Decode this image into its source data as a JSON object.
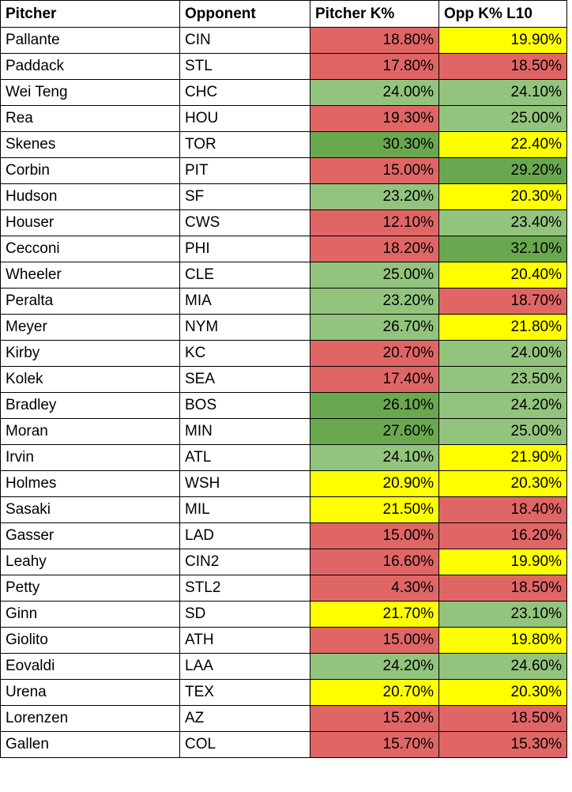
{
  "colors": {
    "red": "#e06666",
    "yellow": "#ffff00",
    "light_green": "#93c47d",
    "dark_green": "#6aa84f"
  },
  "header": {
    "pitcher": "Pitcher",
    "opponent": "Opponent",
    "pitcher_k": "Pitcher K%",
    "opp_k_l10": "Opp K% L10"
  },
  "rows": [
    {
      "pitcher": "Pallante",
      "opponent": "CIN",
      "pitcher_k": "18.80%",
      "pitcher_k_color": "red",
      "opp_k": "19.90%",
      "opp_k_color": "yellow"
    },
    {
      "pitcher": "Paddack",
      "opponent": "STL",
      "pitcher_k": "17.80%",
      "pitcher_k_color": "red",
      "opp_k": "18.50%",
      "opp_k_color": "red"
    },
    {
      "pitcher": "Wei Teng",
      "opponent": "CHC",
      "pitcher_k": "24.00%",
      "pitcher_k_color": "light_green",
      "opp_k": "24.10%",
      "opp_k_color": "light_green"
    },
    {
      "pitcher": "Rea",
      "opponent": "HOU",
      "pitcher_k": "19.30%",
      "pitcher_k_color": "red",
      "opp_k": "25.00%",
      "opp_k_color": "light_green"
    },
    {
      "pitcher": "Skenes",
      "opponent": "TOR",
      "pitcher_k": "30.30%",
      "pitcher_k_color": "dark_green",
      "opp_k": "22.40%",
      "opp_k_color": "yellow"
    },
    {
      "pitcher": "Corbin",
      "opponent": "PIT",
      "pitcher_k": "15.00%",
      "pitcher_k_color": "red",
      "opp_k": "29.20%",
      "opp_k_color": "dark_green"
    },
    {
      "pitcher": "Hudson",
      "opponent": "SF",
      "pitcher_k": "23.20%",
      "pitcher_k_color": "light_green",
      "opp_k": "20.30%",
      "opp_k_color": "yellow"
    },
    {
      "pitcher": "Houser",
      "opponent": "CWS",
      "pitcher_k": "12.10%",
      "pitcher_k_color": "red",
      "opp_k": "23.40%",
      "opp_k_color": "light_green"
    },
    {
      "pitcher": "Cecconi",
      "opponent": "PHI",
      "pitcher_k": "18.20%",
      "pitcher_k_color": "red",
      "opp_k": "32.10%",
      "opp_k_color": "dark_green"
    },
    {
      "pitcher": "Wheeler",
      "opponent": "CLE",
      "pitcher_k": "25.00%",
      "pitcher_k_color": "light_green",
      "opp_k": "20.40%",
      "opp_k_color": "yellow"
    },
    {
      "pitcher": "Peralta",
      "opponent": "MIA",
      "pitcher_k": "23.20%",
      "pitcher_k_color": "light_green",
      "opp_k": "18.70%",
      "opp_k_color": "red"
    },
    {
      "pitcher": "Meyer",
      "opponent": "NYM",
      "pitcher_k": "26.70%",
      "pitcher_k_color": "light_green",
      "opp_k": "21.80%",
      "opp_k_color": "yellow"
    },
    {
      "pitcher": "Kirby",
      "opponent": "KC",
      "pitcher_k": "20.70%",
      "pitcher_k_color": "red",
      "opp_k": "24.00%",
      "opp_k_color": "light_green"
    },
    {
      "pitcher": "Kolek",
      "opponent": "SEA",
      "pitcher_k": "17.40%",
      "pitcher_k_color": "red",
      "opp_k": "23.50%",
      "opp_k_color": "light_green"
    },
    {
      "pitcher": "Bradley",
      "opponent": "BOS",
      "pitcher_k": "26.10%",
      "pitcher_k_color": "dark_green",
      "opp_k": "24.20%",
      "opp_k_color": "light_green"
    },
    {
      "pitcher": "Moran",
      "opponent": "MIN",
      "pitcher_k": "27.60%",
      "pitcher_k_color": "dark_green",
      "opp_k": "25.00%",
      "opp_k_color": "light_green"
    },
    {
      "pitcher": "Irvin",
      "opponent": "ATL",
      "pitcher_k": "24.10%",
      "pitcher_k_color": "light_green",
      "opp_k": "21.90%",
      "opp_k_color": "yellow"
    },
    {
      "pitcher": "Holmes",
      "opponent": "WSH",
      "pitcher_k": "20.90%",
      "pitcher_k_color": "yellow",
      "opp_k": "20.30%",
      "opp_k_color": "yellow"
    },
    {
      "pitcher": "Sasaki",
      "opponent": "MIL",
      "pitcher_k": "21.50%",
      "pitcher_k_color": "yellow",
      "opp_k": "18.40%",
      "opp_k_color": "red"
    },
    {
      "pitcher": "Gasser",
      "opponent": "LAD",
      "pitcher_k": "15.00%",
      "pitcher_k_color": "red",
      "opp_k": "16.20%",
      "opp_k_color": "red"
    },
    {
      "pitcher": "Leahy",
      "opponent": "CIN2",
      "pitcher_k": "16.60%",
      "pitcher_k_color": "red",
      "opp_k": "19.90%",
      "opp_k_color": "yellow"
    },
    {
      "pitcher": "Petty",
      "opponent": "STL2",
      "pitcher_k": "4.30%",
      "pitcher_k_color": "red",
      "opp_k": "18.50%",
      "opp_k_color": "red"
    },
    {
      "pitcher": "Ginn",
      "opponent": "SD",
      "pitcher_k": "21.70%",
      "pitcher_k_color": "yellow",
      "opp_k": "23.10%",
      "opp_k_color": "light_green"
    },
    {
      "pitcher": "Giolito",
      "opponent": "ATH",
      "pitcher_k": "15.00%",
      "pitcher_k_color": "red",
      "opp_k": "19.80%",
      "opp_k_color": "yellow"
    },
    {
      "pitcher": "Eovaldi",
      "opponent": "LAA",
      "pitcher_k": "24.20%",
      "pitcher_k_color": "light_green",
      "opp_k": "24.60%",
      "opp_k_color": "light_green"
    },
    {
      "pitcher": "Urena",
      "opponent": "TEX",
      "pitcher_k": "20.70%",
      "pitcher_k_color": "yellow",
      "opp_k": "20.30%",
      "opp_k_color": "yellow"
    },
    {
      "pitcher": "Lorenzen",
      "opponent": "AZ",
      "pitcher_k": "15.20%",
      "pitcher_k_color": "red",
      "opp_k": "18.50%",
      "opp_k_color": "red"
    },
    {
      "pitcher": "Gallen",
      "opponent": "COL",
      "pitcher_k": "15.70%",
      "pitcher_k_color": "red",
      "opp_k": "15.30%",
      "opp_k_color": "red"
    }
  ]
}
